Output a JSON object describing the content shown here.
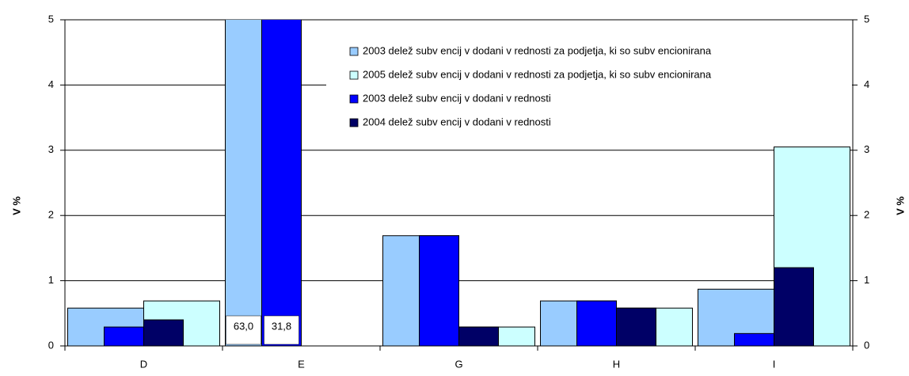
{
  "chart_data": {
    "type": "bar",
    "categories": [
      "D",
      "E",
      "G",
      "H",
      "I"
    ],
    "series": [
      {
        "name": "2003 delež subv encij v  dodani v rednosti za podjetja, ki so subv encionirana",
        "color": "#99ccff",
        "values": [
          0.58,
          63.0,
          1.69,
          0.69,
          0.87
        ],
        "value_labels": [
          null,
          "63,0",
          null,
          null,
          null
        ]
      },
      {
        "name": "2005 delež subv encij v  dodani v rednosti za podjetja, ki so subv encionirana",
        "color": "#ccffff",
        "values": [
          0.69,
          null,
          0.29,
          0.58,
          3.05
        ]
      },
      {
        "name": "2003 delež subv encij v  dodani v rednosti",
        "color": "#0000ff",
        "axis": "y2",
        "values": [
          0.29,
          31.8,
          1.69,
          0.69,
          0.19
        ],
        "value_labels": [
          null,
          "31,8",
          null,
          null,
          null
        ]
      },
      {
        "name": "2004 delež subv encij v  dodani v rednosti",
        "color": "#000066",
        "axis": "y2",
        "values": [
          0.4,
          null,
          0.29,
          0.58,
          1.2
        ]
      }
    ],
    "ylabel": "V %",
    "y2label": "V %",
    "ylim": [
      0,
      5
    ],
    "yticks": [
      0,
      1,
      2,
      3,
      4,
      5
    ],
    "y2lim": [
      0,
      5
    ],
    "y2ticks": [
      0,
      1,
      2,
      3,
      4,
      5
    ],
    "grid": true,
    "legend": "top-right"
  }
}
